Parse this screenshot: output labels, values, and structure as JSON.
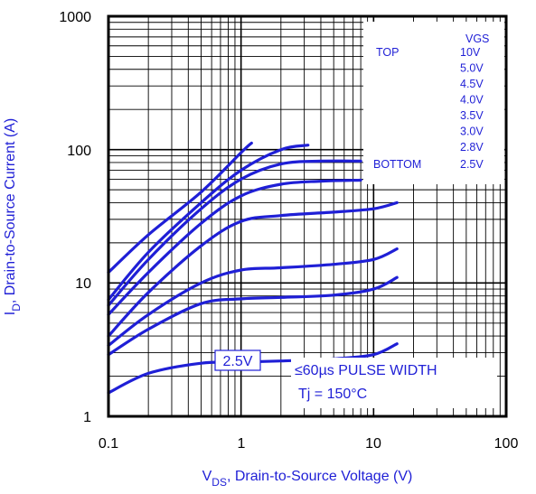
{
  "chart_data": {
    "type": "line",
    "title": "",
    "xlabel_main": "V",
    "xlabel_sub": "DS",
    "xlabel_rest": ", Drain-to-Source Voltage (V)",
    "ylabel_main": "I",
    "ylabel_sub": "D",
    "ylabel_rest": ", Drain-to-Source Current (A)",
    "xscale": "log",
    "yscale": "log",
    "xlim": [
      0.1,
      100
    ],
    "ylim": [
      1,
      1000
    ],
    "xticks": [
      "0.1",
      "1",
      "10",
      "100"
    ],
    "yticks": [
      "1",
      "10",
      "100",
      "1000"
    ],
    "grid": true,
    "legend": {
      "placement": "top-right",
      "header": "VGS",
      "top_label": "TOP",
      "bottom_label": "BOTTOM",
      "entries": [
        "10V",
        "5.0V",
        "4.5V",
        "4.0V",
        "3.5V",
        "3.0V",
        "2.8V",
        "2.5V"
      ]
    },
    "annotations": {
      "curve_label": "2.5V",
      "pulse_width": "≤60µs PULSE WIDTH",
      "temperature": "Tj = 150°C"
    },
    "line_color": "#1f1fd6",
    "series": [
      {
        "name": "10V",
        "x": [
          0.1,
          0.2,
          0.5,
          1.0,
          1.2
        ],
        "y": [
          12,
          23,
          48,
          95,
          112
        ]
      },
      {
        "name": "5.0V",
        "x": [
          0.1,
          0.2,
          0.5,
          1.0,
          2.0,
          3.2
        ],
        "y": [
          7.5,
          17,
          40,
          70,
          100,
          108
        ]
      },
      {
        "name": "4.5V",
        "x": [
          0.1,
          0.2,
          0.5,
          1.0,
          2.0,
          4.0,
          8.0
        ],
        "y": [
          6.8,
          15,
          36,
          60,
          78,
          82,
          82
        ]
      },
      {
        "name": "4.0V",
        "x": [
          0.1,
          0.2,
          0.5,
          1.0,
          2.0,
          4.0,
          8.0
        ],
        "y": [
          5.8,
          12,
          28,
          45,
          55,
          58,
          59
        ]
      },
      {
        "name": "3.5V",
        "x": [
          0.1,
          0.2,
          0.5,
          1.0,
          2.0,
          5.0,
          10.0,
          15.0
        ],
        "y": [
          4.0,
          8.5,
          19,
          29,
          32,
          34,
          36,
          40
        ]
      },
      {
        "name": "3.0V",
        "x": [
          0.1,
          0.2,
          0.5,
          1.0,
          2.0,
          5.0,
          10.0,
          15.0
        ],
        "y": [
          3.4,
          5.8,
          10,
          12.5,
          13,
          13.8,
          15,
          18
        ]
      },
      {
        "name": "2.8V",
        "x": [
          0.1,
          0.2,
          0.5,
          1.0,
          2.0,
          5.0,
          10.0,
          15.0
        ],
        "y": [
          2.9,
          4.5,
          7.0,
          7.6,
          7.8,
          8.1,
          9.0,
          11
        ]
      },
      {
        "name": "2.5V",
        "x": [
          0.1,
          0.2,
          0.5,
          1.0,
          2.0,
          5.0,
          10.0,
          15.0
        ],
        "y": [
          1.5,
          2.1,
          2.5,
          2.55,
          2.6,
          2.7,
          2.9,
          3.5
        ]
      }
    ]
  }
}
